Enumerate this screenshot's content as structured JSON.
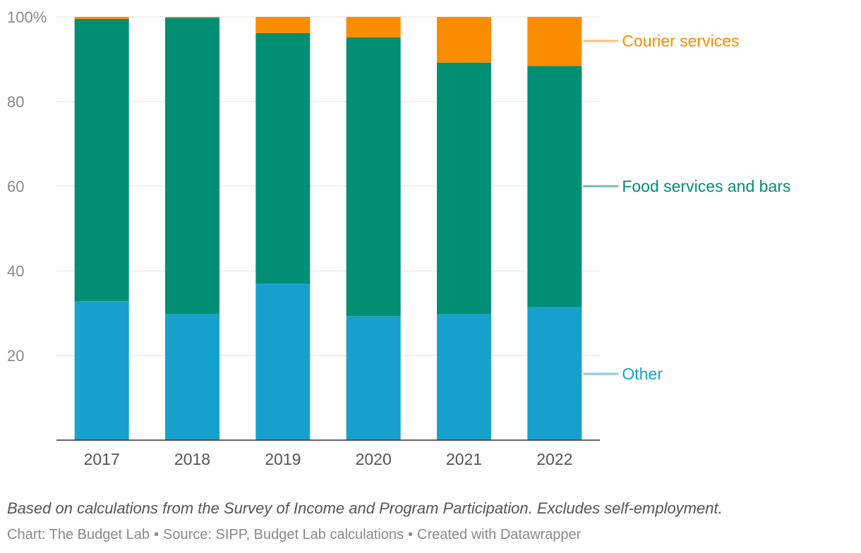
{
  "chart_data": {
    "type": "bar",
    "stacked": true,
    "categories": [
      "2017",
      "2018",
      "2019",
      "2020",
      "2021",
      "2022"
    ],
    "series": [
      {
        "name": "Other",
        "color": "#18a1cd",
        "values": [
          32.8,
          29.8,
          37.0,
          29.3,
          29.8,
          31.5
        ]
      },
      {
        "name": "Food services and bars",
        "color": "#008f72",
        "values": [
          66.7,
          70.0,
          59.2,
          65.9,
          59.4,
          56.9
        ]
      },
      {
        "name": "Courier services",
        "color": "#fa8c00",
        "values": [
          0.5,
          0.2,
          3.8,
          4.8,
          10.8,
          11.6
        ]
      }
    ],
    "ylim": [
      0,
      100
    ],
    "yticks": [
      20,
      40,
      60,
      80,
      100
    ],
    "ytick_labels": [
      "20",
      "40",
      "60",
      "80",
      "100%"
    ],
    "grid": true,
    "legend_placement": "right, direct labels",
    "notes": "Based on calculations from the Survey of Income and Program Participation. Excludes self-employment.",
    "footer": {
      "chart": "Chart: The Budget Lab",
      "separator": "•",
      "source": "Source: SIPP, Budget Lab calculations",
      "created": "Created with Datawrapper"
    }
  }
}
